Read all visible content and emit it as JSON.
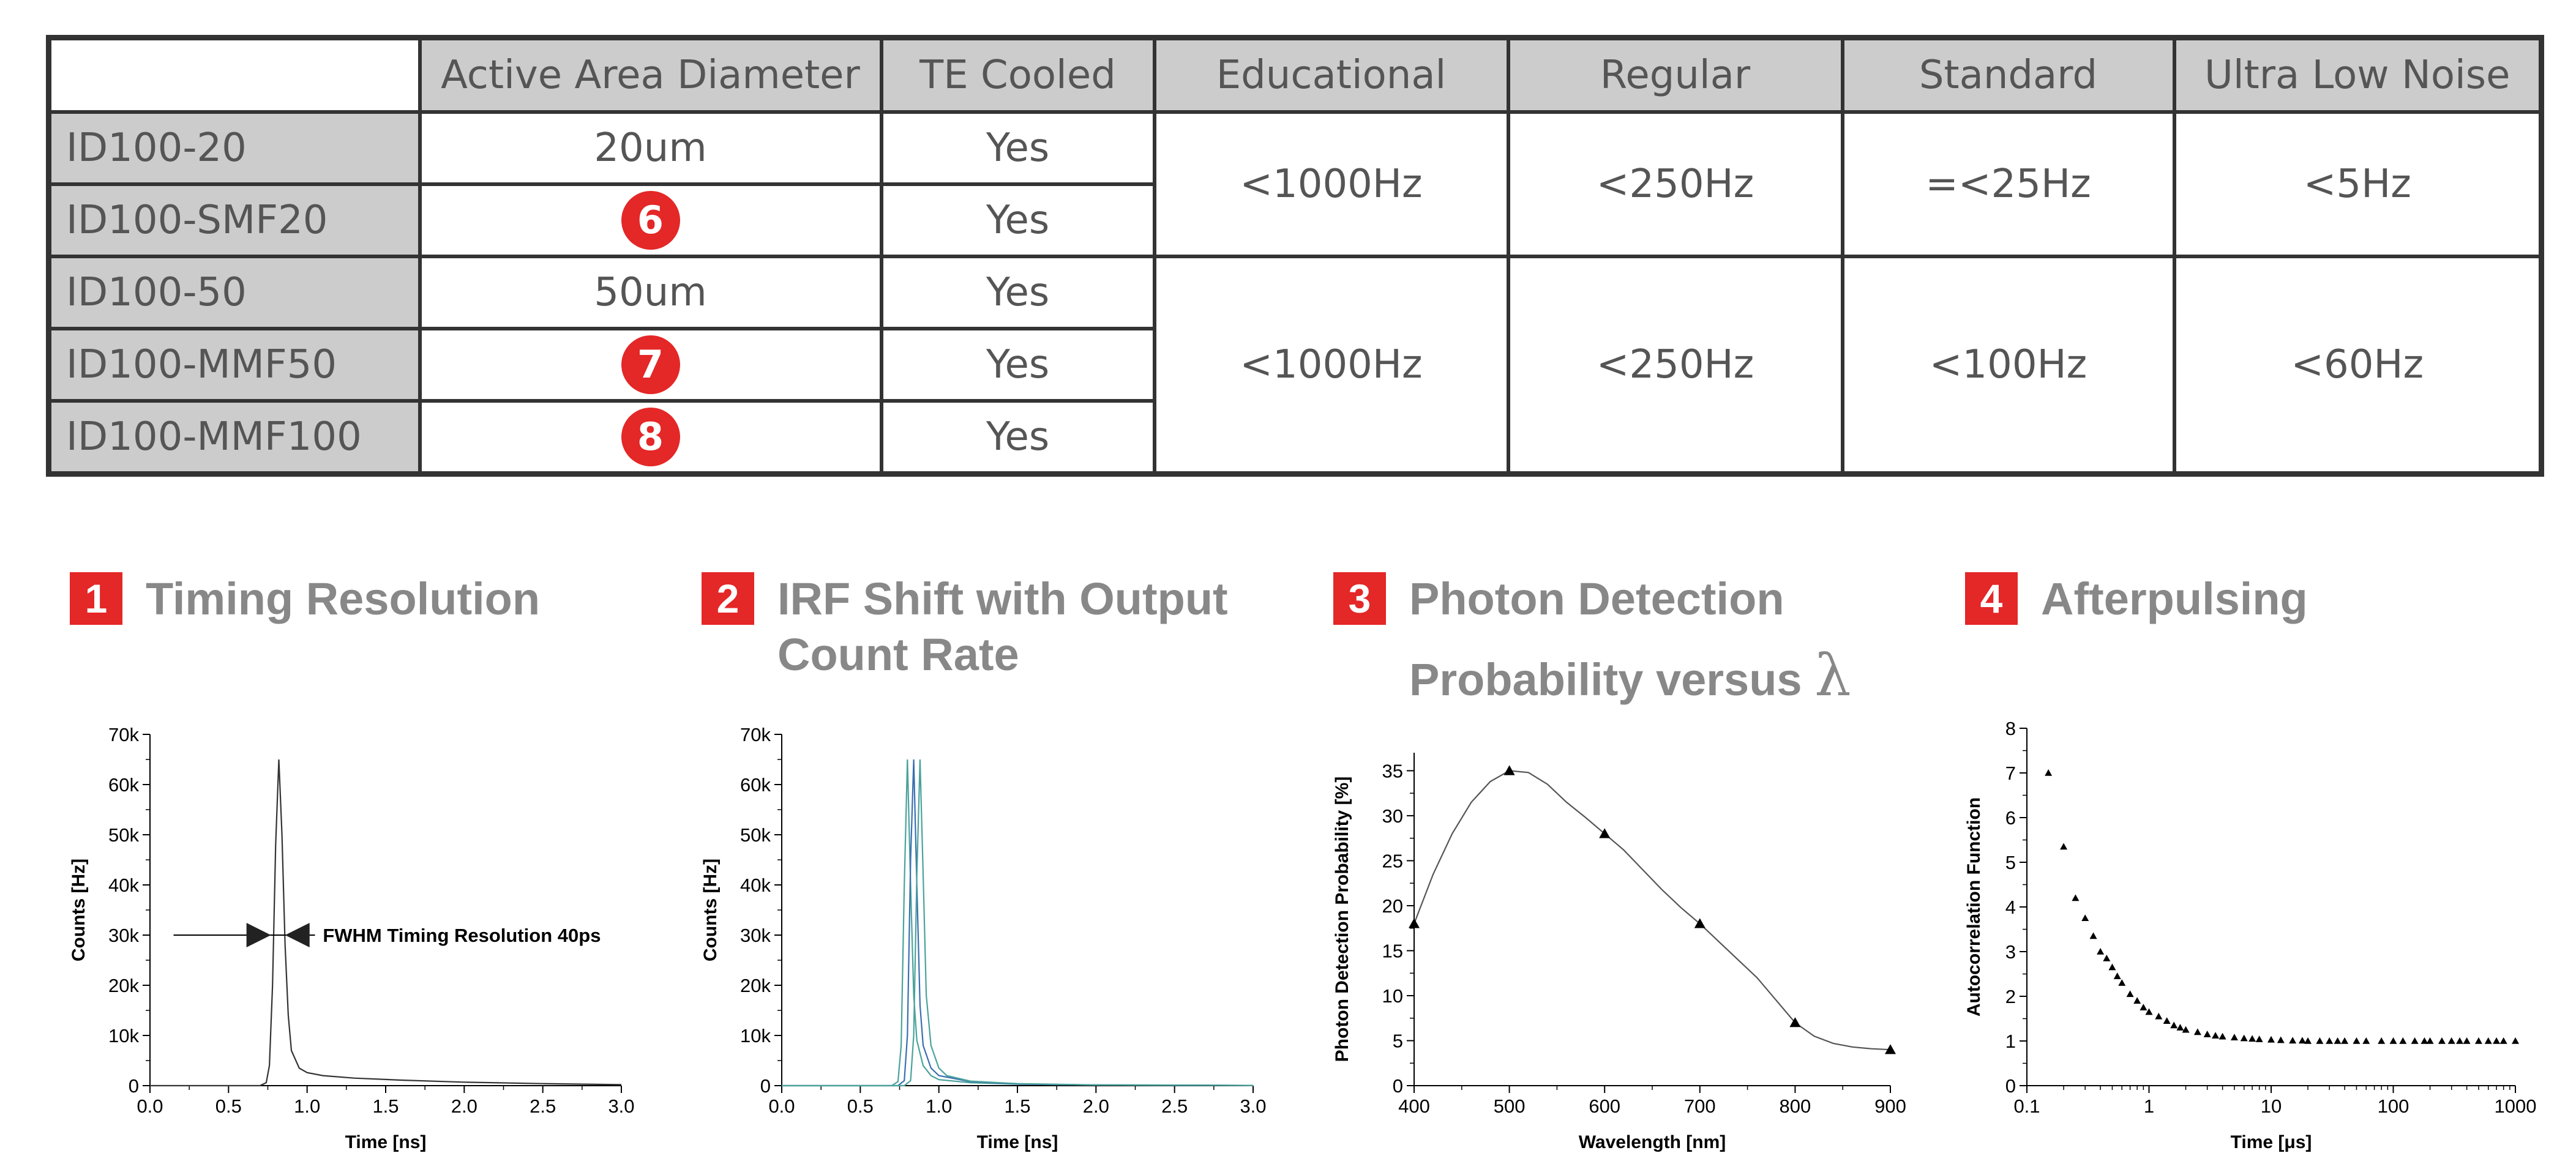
{
  "table": {
    "headers": [
      "",
      "Active Area Diameter",
      "TE Cooled",
      "Educational",
      "Regular",
      "Standard",
      "Ultra Low Noise"
    ],
    "rows": [
      {
        "model": "ID100-20",
        "diameter": "20um",
        "te_cooled": "Yes"
      },
      {
        "model": "ID100-SMF20",
        "badge": "6",
        "te_cooled": "Yes"
      },
      {
        "model": "ID100-50",
        "diameter": "50um",
        "te_cooled": "Yes"
      },
      {
        "model": "ID100-MMF50",
        "badge": "7",
        "te_cooled": "Yes"
      },
      {
        "model": "ID100-MMF100",
        "badge": "8",
        "te_cooled": "Yes"
      }
    ],
    "group_a": {
      "educational": "<1000Hz",
      "regular": "<250Hz",
      "standard": "=<25Hz",
      "ultra_low_noise": "<5Hz"
    },
    "group_b": {
      "educational": "<1000Hz",
      "regular": "<250Hz",
      "standard": "<100Hz",
      "ultra_low_noise": "<60Hz"
    }
  },
  "panels": [
    {
      "num": "1",
      "title_lines": [
        "Timing Resolution"
      ]
    },
    {
      "num": "2",
      "title_lines": [
        "IRF Shift with Output",
        "Count Rate"
      ]
    },
    {
      "num": "3",
      "title_lines": [
        "Photon Detection",
        "Probability versus"
      ],
      "symbol": "λ"
    },
    {
      "num": "4",
      "title_lines": [
        "Afterpulsing"
      ]
    }
  ],
  "colors": {
    "accent_red": "#e42727",
    "header_gray": "#cccccc",
    "text_gray": "#555555",
    "title_gray": "#888888",
    "irf_teal": "#4aa39a",
    "irf_blue": "#3a6fb0"
  },
  "chart_data": [
    {
      "type": "line",
      "xlabel": "Time [ns]",
      "ylabel": "Counts [Hz]",
      "xlim": [
        0,
        3
      ],
      "ylim": [
        0,
        70000
      ],
      "x_ticks": [
        0,
        0.5,
        1,
        1.5,
        2,
        2.5,
        3
      ],
      "x_tick_labels": [
        "0.0",
        "0.5",
        "1.0",
        "1.5",
        "2.0",
        "2.5",
        "3.0"
      ],
      "y_ticks": [
        0,
        10000,
        20000,
        30000,
        40000,
        50000,
        60000,
        70000
      ],
      "y_tick_labels": [
        "0",
        "10k",
        "20k",
        "30k",
        "40k",
        "50k",
        "60k",
        "70k"
      ],
      "annotation": "FWHM Timing Resolution 40ps",
      "series": [
        {
          "x": [
            0.0,
            0.5,
            0.7,
            0.74,
            0.76,
            0.78,
            0.8,
            0.82,
            0.84,
            0.86,
            0.88,
            0.9,
            0.95,
            1.0,
            1.1,
            1.3,
            1.6,
            2.0,
            2.5,
            3.0
          ],
          "y": [
            0,
            0,
            0,
            600,
            4000,
            20000,
            48000,
            65000,
            50000,
            28000,
            14000,
            7000,
            3500,
            2600,
            2000,
            1500,
            1100,
            700,
            400,
            200
          ]
        }
      ]
    },
    {
      "type": "line",
      "xlabel": "Time [ns]",
      "ylabel": "Counts [Hz]",
      "xlim": [
        0,
        3
      ],
      "ylim": [
        0,
        70000
      ],
      "x_ticks": [
        0,
        0.5,
        1,
        1.5,
        2,
        2.5,
        3
      ],
      "x_tick_labels": [
        "0.0",
        "0.5",
        "1.0",
        "1.5",
        "2.0",
        "2.5",
        "3.0"
      ],
      "y_ticks": [
        0,
        10000,
        20000,
        30000,
        40000,
        50000,
        60000,
        70000
      ],
      "y_tick_labels": [
        "0",
        "10k",
        "20k",
        "30k",
        "40k",
        "50k",
        "60k",
        "70k"
      ],
      "series": [
        {
          "color": "#4aa39a",
          "x": [
            0.0,
            0.7,
            0.74,
            0.76,
            0.78,
            0.8,
            0.82,
            0.84,
            0.86,
            0.9,
            0.95,
            1.0,
            1.2,
            1.5,
            2.0,
            3.0
          ],
          "y": [
            0,
            0,
            800,
            8000,
            40000,
            65000,
            40000,
            18000,
            9000,
            4000,
            2000,
            1200,
            600,
            300,
            150,
            50
          ]
        },
        {
          "color": "#3a6fb0",
          "x": [
            0.0,
            0.74,
            0.78,
            0.8,
            0.82,
            0.84,
            0.86,
            0.88,
            0.9,
            0.95,
            1.0,
            1.2,
            1.5,
            2.0,
            3.0
          ],
          "y": [
            0,
            0,
            1000,
            10000,
            45000,
            65000,
            40000,
            16000,
            8000,
            3500,
            2000,
            800,
            300,
            150,
            50
          ]
        },
        {
          "color": "#4aa39a",
          "x": [
            0.0,
            0.78,
            0.82,
            0.84,
            0.86,
            0.88,
            0.9,
            0.92,
            0.95,
            1.0,
            1.05,
            1.2,
            1.5,
            2.0,
            3.0
          ],
          "y": [
            0,
            0,
            1000,
            10000,
            42000,
            65000,
            42000,
            18000,
            8000,
            3500,
            2000,
            900,
            400,
            150,
            50
          ]
        }
      ]
    },
    {
      "type": "line",
      "xlabel": "Wavelength [nm]",
      "ylabel": "Photon Detection Probability [%]",
      "xlim": [
        400,
        900
      ],
      "ylim": [
        0,
        37
      ],
      "x_ticks": [
        400,
        500,
        600,
        700,
        800,
        900
      ],
      "x_tick_labels": [
        "400",
        "500",
        "600",
        "700",
        "800",
        "900"
      ],
      "y_ticks": [
        0,
        5,
        10,
        15,
        20,
        25,
        30,
        35
      ],
      "y_tick_labels": [
        "0",
        "5",
        "10",
        "15",
        "20",
        "25",
        "30",
        "35"
      ],
      "curve": {
        "x": [
          400,
          420,
          440,
          460,
          480,
          500,
          520,
          540,
          560,
          580,
          600,
          620,
          640,
          660,
          680,
          700,
          720,
          740,
          760,
          780,
          800,
          820,
          840,
          860,
          880,
          900
        ],
        "y": [
          18,
          23.5,
          28,
          31.5,
          33.8,
          35,
          34.8,
          33.5,
          31.5,
          29.8,
          28,
          26.2,
          24,
          21.8,
          19.8,
          18,
          16,
          14,
          12,
          9.5,
          7,
          5.5,
          4.7,
          4.3,
          4.1,
          4
        ]
      },
      "markers": {
        "x": [
          400,
          500,
          600,
          700,
          800,
          900
        ],
        "y": [
          18,
          35,
          28,
          18,
          7,
          4
        ]
      }
    },
    {
      "type": "scatter",
      "xlabel": "Time [μs]",
      "ylabel": "Autocorrelation Function",
      "x_scale": "log",
      "xlim": [
        0.1,
        1000
      ],
      "ylim": [
        0,
        8
      ],
      "x_ticks": [
        0.1,
        1,
        10,
        100,
        1000
      ],
      "x_tick_labels": [
        "0.1",
        "1",
        "10",
        "100",
        "1000"
      ],
      "y_ticks": [
        0,
        1,
        2,
        3,
        4,
        5,
        6,
        7,
        8
      ],
      "y_tick_labels": [
        "0",
        "1",
        "2",
        "3",
        "4",
        "5",
        "6",
        "7",
        "8"
      ],
      "series": [
        {
          "x": [
            0.15,
            0.2,
            0.25,
            0.3,
            0.35,
            0.4,
            0.45,
            0.5,
            0.55,
            0.6,
            0.7,
            0.8,
            0.9,
            1.0,
            1.2,
            1.4,
            1.6,
            1.8,
            2.0,
            2.5,
            3.0,
            3.5,
            4.0,
            5,
            6,
            7,
            8,
            10,
            12,
            15,
            18,
            20,
            25,
            30,
            35,
            40,
            50,
            60,
            80,
            100,
            120,
            150,
            180,
            200,
            250,
            300,
            350,
            400,
            500,
            600,
            700,
            800,
            1000
          ],
          "y": [
            7.0,
            5.35,
            4.2,
            3.75,
            3.35,
            3.0,
            2.85,
            2.65,
            2.45,
            2.3,
            2.05,
            1.9,
            1.75,
            1.65,
            1.55,
            1.45,
            1.35,
            1.3,
            1.25,
            1.2,
            1.15,
            1.12,
            1.1,
            1.08,
            1.06,
            1.05,
            1.04,
            1.03,
            1.02,
            1.01,
            1.01,
            1.0,
            1.0,
            1.0,
            1.0,
            1.0,
            1.0,
            1.0,
            1.0,
            1.0,
            1.0,
            1.0,
            1.0,
            1.0,
            1.0,
            1.0,
            1.0,
            1.0,
            1.0,
            1.0,
            1.0,
            1.0,
            1.0
          ]
        }
      ]
    }
  ]
}
